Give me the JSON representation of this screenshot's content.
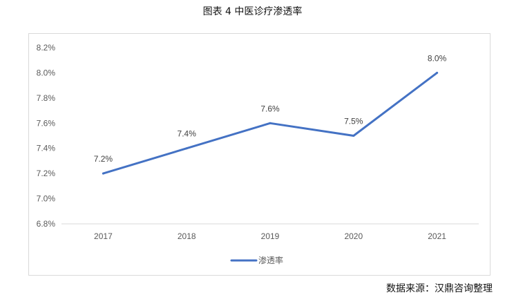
{
  "figure_title": "图表 4 中医诊疗渗透率",
  "source_text": "数据来源：汉鼎咨询整理",
  "chart_data": {
    "type": "line",
    "title": "",
    "xlabel": "",
    "ylabel": "",
    "categories": [
      "2017",
      "2018",
      "2019",
      "2020",
      "2021"
    ],
    "series": [
      {
        "name": "渗透率",
        "values": [
          7.2,
          7.4,
          7.6,
          7.5,
          8.0
        ],
        "labels": [
          "7.2%",
          "7.4%",
          "7.6%",
          "7.5%",
          "8.0%"
        ],
        "color": "#4472c4"
      }
    ],
    "ylim": [
      6.8,
      8.2
    ],
    "yticks": [
      "6.8%",
      "7.0%",
      "7.2%",
      "7.4%",
      "7.6%",
      "7.8%",
      "8.0%",
      "8.2%"
    ],
    "grid": false,
    "legend": "bottom"
  }
}
